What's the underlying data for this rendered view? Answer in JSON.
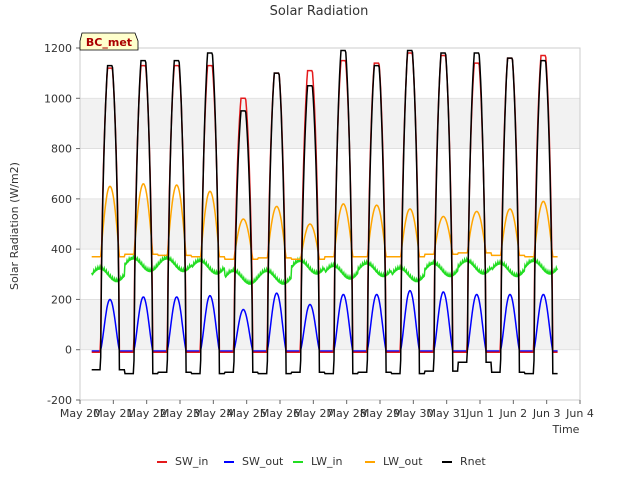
{
  "chart_data": {
    "type": "line",
    "title": "Solar Radiation",
    "xlabel": "Time",
    "ylabel": "Solar Radiation (W/m2)",
    "site_label": "BC_met",
    "ylim": [
      -200,
      1200
    ],
    "xlim": [
      0,
      15
    ],
    "yticks": [
      -200,
      0,
      200,
      400,
      600,
      800,
      1000,
      1200
    ],
    "xticks": [
      {
        "x": 0,
        "label": "May 20"
      },
      {
        "x": 1,
        "label": "May 21"
      },
      {
        "x": 2,
        "label": "May 22"
      },
      {
        "x": 3,
        "label": "May 23"
      },
      {
        "x": 4,
        "label": "May 24"
      },
      {
        "x": 5,
        "label": "May 25"
      },
      {
        "x": 6,
        "label": "May 26"
      },
      {
        "x": 7,
        "label": "May 27"
      },
      {
        "x": 8,
        "label": "May 28"
      },
      {
        "x": 9,
        "label": "May 29"
      },
      {
        "x": 10,
        "label": "May 30"
      },
      {
        "x": 11,
        "label": "May 31"
      },
      {
        "x": 12,
        "label": "Jun 1"
      },
      {
        "x": 13,
        "label": "Jun 2"
      },
      {
        "x": 14,
        "label": "Jun 3"
      },
      {
        "x": 15,
        "label": "Jun 4"
      }
    ],
    "day_start": 0.35,
    "day_count": 14,
    "daily": {
      "sw_in_peak": [
        1120,
        1130,
        1130,
        1130,
        1000,
        1100,
        1110,
        1150,
        1140,
        1180,
        1170,
        1140,
        1160,
        1170
      ],
      "rnet_peak": [
        1130,
        1150,
        1150,
        1180,
        950,
        1100,
        1050,
        1190,
        1130,
        1190,
        1180,
        1180,
        1160,
        1150
      ],
      "sw_out_peak": [
        200,
        210,
        210,
        215,
        160,
        225,
        180,
        220,
        220,
        235,
        230,
        220,
        220,
        220
      ],
      "lw_out_peak": [
        650,
        660,
        655,
        630,
        520,
        570,
        500,
        580,
        575,
        560,
        530,
        550,
        560,
        590
      ],
      "lw_out_night": [
        370,
        380,
        375,
        370,
        360,
        365,
        360,
        370,
        370,
        370,
        380,
        385,
        375,
        370
      ],
      "lw_in_level": [
        300,
        340,
        340,
        330,
        290,
        290,
        330,
        310,
        320,
        300,
        320,
        330,
        320,
        330
      ],
      "rnet_night": [
        -80,
        -95,
        -90,
        -95,
        -90,
        -95,
        -90,
        -95,
        -90,
        -95,
        -85,
        -50,
        -90,
        -95
      ],
      "sw_in_night": -10,
      "sw_out_night": -5
    },
    "series": [
      {
        "name": "SW_in",
        "color": "#e41a1c"
      },
      {
        "name": "SW_out",
        "color": "#0000ff"
      },
      {
        "name": "LW_in",
        "color": "#22dd22"
      },
      {
        "name": "LW_out",
        "color": "#ffa500"
      },
      {
        "name": "Rnet",
        "color": "#000000"
      }
    ],
    "grid": true,
    "legend": "bottom"
  }
}
